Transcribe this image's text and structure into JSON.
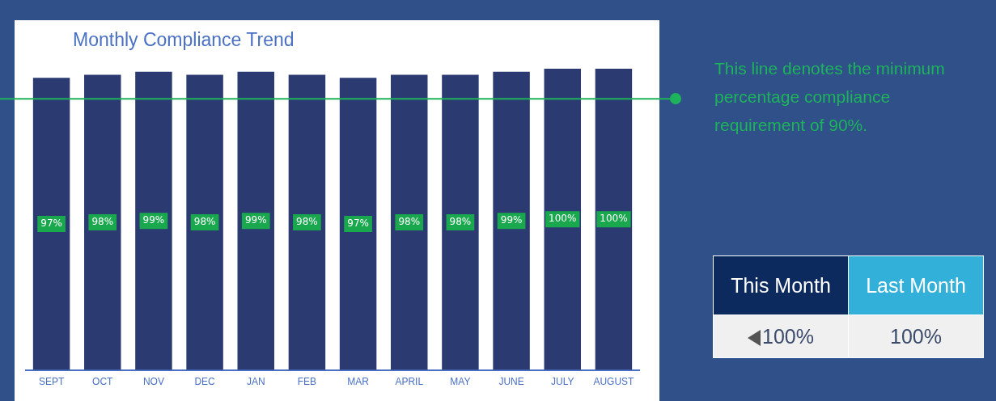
{
  "chart_data": [
    {
      "type": "bar",
      "title": "Monthly Compliance Trend",
      "categories": [
        "SEPT",
        "OCT",
        "NOV",
        "DEC",
        "JAN",
        "FEB",
        "MAR",
        "APRIL",
        "MAY",
        "JUNE",
        "JULY",
        "AUGUST"
      ],
      "values": [
        97,
        98,
        99,
        98,
        99,
        98,
        97,
        98,
        98,
        99,
        100,
        100
      ],
      "value_labels": [
        "97%",
        "98%",
        "99%",
        "98%",
        "99%",
        "98%",
        "97%",
        "98%",
        "98%",
        "99%",
        "100%",
        "100%"
      ],
      "color": "#2b3a70",
      "grid": false,
      "legend": false,
      "tick_labels": "x",
      "ref_lines": [
        {
          "axis": "y",
          "value": 90,
          "label": "This line denotes the minimum percentage compliance requirement of 90%.",
          "color": "#1db35a"
        }
      ]
    },
    {
      "type": "other",
      "categories": [
        "This Month",
        "Last Month"
      ],
      "value_labels": [
        "100%",
        "100%"
      ]
    }
  ]
}
